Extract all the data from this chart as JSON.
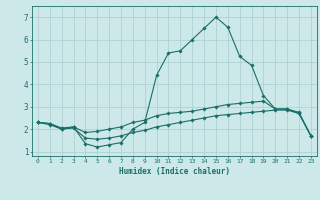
{
  "title": "",
  "xlabel": "Humidex (Indice chaleur)",
  "xlim": [
    -0.5,
    23.5
  ],
  "ylim": [
    0.8,
    7.5
  ],
  "xticks": [
    0,
    1,
    2,
    3,
    4,
    5,
    6,
    7,
    8,
    9,
    10,
    11,
    12,
    13,
    14,
    15,
    16,
    17,
    18,
    19,
    20,
    21,
    22,
    23
  ],
  "yticks": [
    1,
    2,
    3,
    4,
    5,
    6,
    7
  ],
  "bg_color": "#cde8e8",
  "line_color": "#1a6e6a",
  "grid_color": "#aacece",
  "line1_x": [
    0,
    1,
    2,
    3,
    4,
    5,
    6,
    7,
    8,
    9,
    10,
    11,
    12,
    13,
    14,
    15,
    16,
    17,
    18,
    19,
    20,
    21,
    22,
    23
  ],
  "line1_y": [
    2.3,
    2.25,
    2.0,
    2.1,
    1.35,
    1.2,
    1.3,
    1.4,
    2.0,
    2.3,
    4.4,
    5.4,
    5.5,
    6.0,
    6.5,
    7.0,
    6.55,
    5.25,
    4.85,
    3.5,
    2.9,
    2.9,
    2.7,
    1.7
  ],
  "line2_x": [
    0,
    1,
    2,
    3,
    4,
    5,
    6,
    7,
    8,
    9,
    10,
    11,
    12,
    13,
    14,
    15,
    16,
    17,
    18,
    19,
    20,
    21,
    22,
    23
  ],
  "line2_y": [
    2.3,
    2.25,
    2.05,
    2.1,
    1.85,
    1.9,
    2.0,
    2.1,
    2.3,
    2.4,
    2.6,
    2.7,
    2.75,
    2.8,
    2.9,
    3.0,
    3.1,
    3.15,
    3.2,
    3.25,
    2.9,
    2.9,
    2.75,
    1.7
  ],
  "line3_x": [
    0,
    1,
    2,
    3,
    4,
    5,
    6,
    7,
    8,
    9,
    10,
    11,
    12,
    13,
    14,
    15,
    16,
    17,
    18,
    19,
    20,
    21,
    22,
    23
  ],
  "line3_y": [
    2.3,
    2.2,
    2.0,
    2.05,
    1.6,
    1.55,
    1.6,
    1.7,
    1.85,
    1.95,
    2.1,
    2.2,
    2.3,
    2.4,
    2.5,
    2.6,
    2.65,
    2.7,
    2.75,
    2.8,
    2.85,
    2.85,
    2.7,
    1.7
  ]
}
